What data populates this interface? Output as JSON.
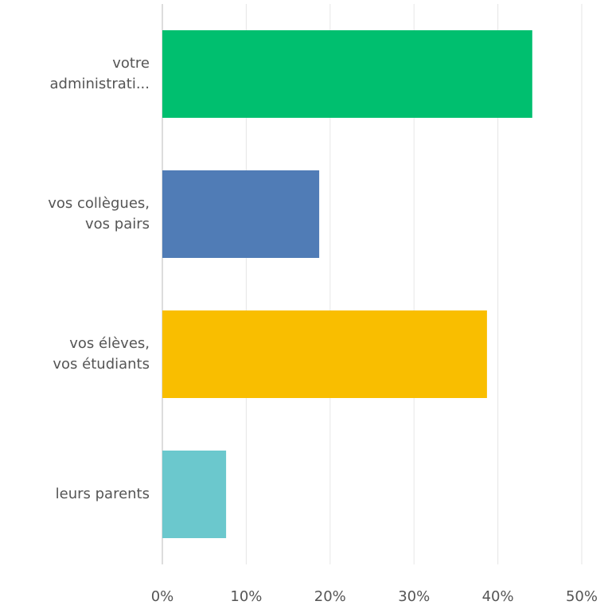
{
  "chart_data": {
    "type": "bar",
    "orientation": "horizontal",
    "categories": [
      "votre\nadministrati...",
      "vos collègues,\nvos pairs",
      "vos élèves,\nvos étudiants",
      "leurs parents"
    ],
    "values": [
      44.1,
      18.7,
      38.7,
      7.6
    ],
    "colors": [
      "#00bf6f",
      "#507cb6",
      "#f9be00",
      "#6bc8cd"
    ],
    "xlim": [
      0,
      50
    ],
    "xticks": [
      {
        "value": 0,
        "label": "0%"
      },
      {
        "value": 10,
        "label": "10%"
      },
      {
        "value": 20,
        "label": "20%"
      },
      {
        "value": 30,
        "label": "30%"
      },
      {
        "value": 40,
        "label": "40%"
      },
      {
        "value": 50,
        "label": "50%"
      }
    ],
    "grid": true
  }
}
